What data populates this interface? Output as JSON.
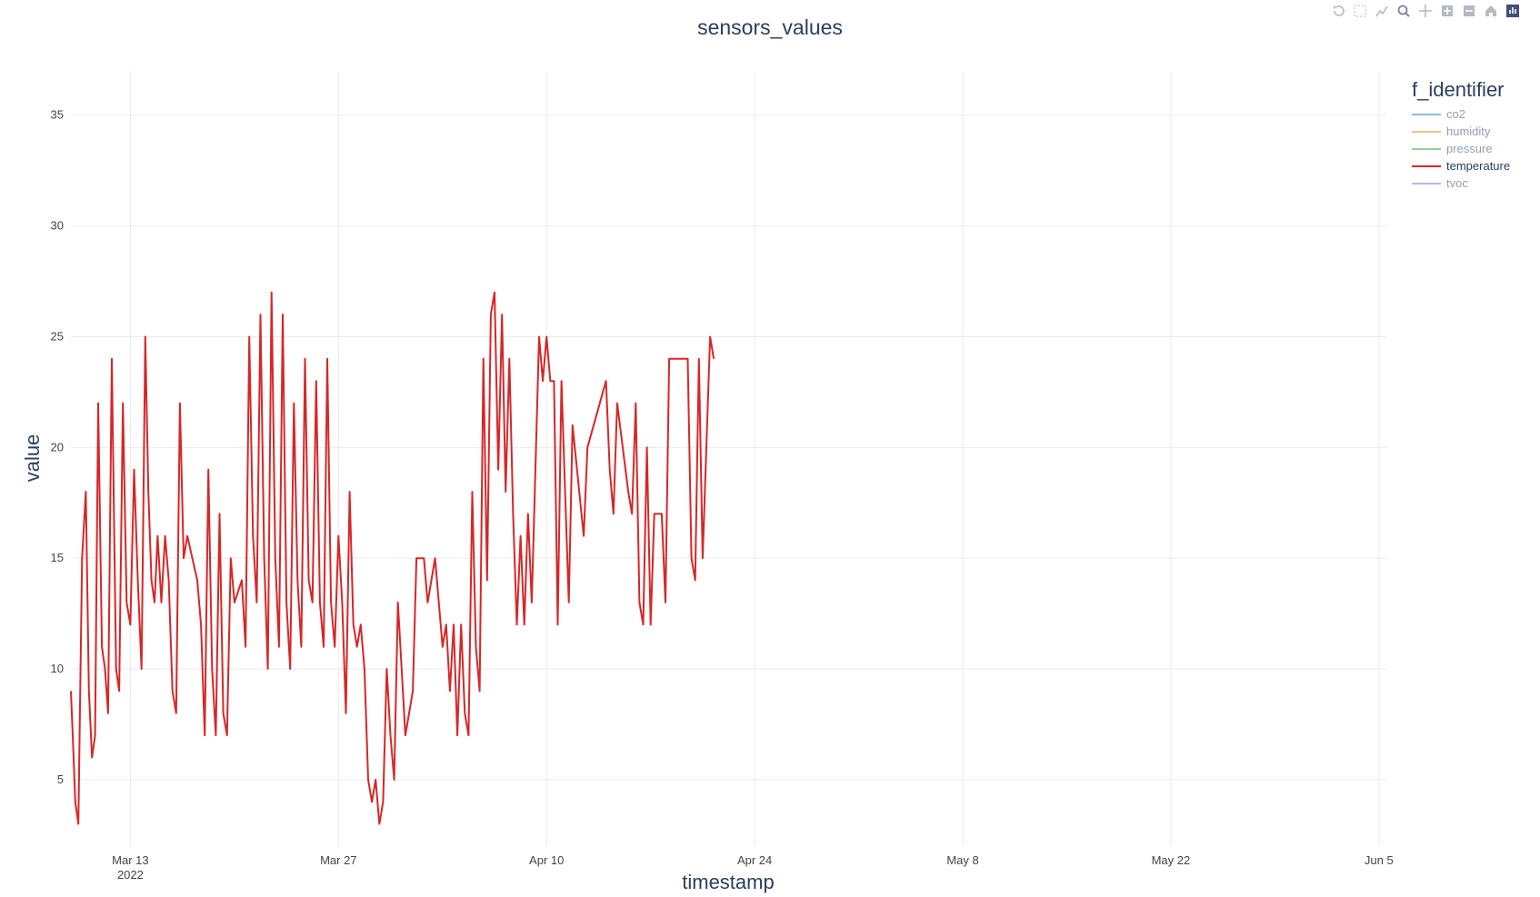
{
  "modebar": {
    "buttons": [
      "undo-icon",
      "select-icon",
      "autoscale-icon",
      "zoom-icon",
      "pan-icon",
      "zoom-in-icon",
      "zoom-out-icon",
      "home-icon",
      "plotly-logo-icon"
    ]
  },
  "chart_data": {
    "type": "line",
    "title": "sensors_values",
    "xlabel": "timestamp",
    "ylabel": "value",
    "ylim": [
      2,
      37
    ],
    "xlim": [
      "2022-03-09",
      "2022-06-05T12:00"
    ],
    "x_ticks": [
      {
        "date": "2022-03-13",
        "label": "Mar 13",
        "sublabel": "2022"
      },
      {
        "date": "2022-03-27",
        "label": "Mar 27"
      },
      {
        "date": "2022-04-10",
        "label": "Apr 10"
      },
      {
        "date": "2022-04-24",
        "label": "Apr 24"
      },
      {
        "date": "2022-05-08",
        "label": "May 8"
      },
      {
        "date": "2022-05-22",
        "label": "May 22"
      },
      {
        "date": "2022-06-05",
        "label": "Jun 5"
      }
    ],
    "y_ticks": [
      5,
      10,
      15,
      20,
      25,
      30,
      35
    ],
    "grid": true,
    "legend": {
      "title": "f_identifier",
      "placement": "top-right",
      "entries": [
        {
          "name": "co2",
          "color": "#1f77b4",
          "visible": false
        },
        {
          "name": "humidity",
          "color": "#ff7f0e",
          "visible": false
        },
        {
          "name": "pressure",
          "color": "#2ca02c",
          "visible": false
        },
        {
          "name": "temperature",
          "color": "#d62728",
          "visible": true
        },
        {
          "name": "tvoc",
          "color": "#9467bd",
          "visible": false
        }
      ]
    },
    "series": [
      {
        "name": "temperature",
        "color": "#d62728",
        "points": [
          [
            "2022-03-09T00:00",
            9
          ],
          [
            "2022-03-09T03:00",
            7
          ],
          [
            "2022-03-09T07:00",
            4
          ],
          [
            "2022-03-09T12:00",
            3
          ],
          [
            "2022-03-09T18:00",
            15
          ],
          [
            "2022-03-10T00:00",
            18
          ],
          [
            "2022-03-10T05:00",
            9
          ],
          [
            "2022-03-10T10:00",
            6
          ],
          [
            "2022-03-10T15:00",
            7
          ],
          [
            "2022-03-10T20:00",
            22
          ],
          [
            "2022-03-11T02:00",
            11
          ],
          [
            "2022-03-11T07:00",
            10
          ],
          [
            "2022-03-11T12:00",
            8
          ],
          [
            "2022-03-11T18:00",
            24
          ],
          [
            "2022-03-12T01:00",
            10
          ],
          [
            "2022-03-12T06:00",
            9
          ],
          [
            "2022-03-12T12:00",
            22
          ],
          [
            "2022-03-12T18:00",
            13
          ],
          [
            "2022-03-13T00:00",
            12
          ],
          [
            "2022-03-13T06:00",
            19
          ],
          [
            "2022-03-13T12:00",
            14
          ],
          [
            "2022-03-13T18:00",
            10
          ],
          [
            "2022-03-14T00:00",
            25
          ],
          [
            "2022-03-14T05:00",
            18
          ],
          [
            "2022-03-14T10:00",
            14
          ],
          [
            "2022-03-14T15:00",
            13
          ],
          [
            "2022-03-14T20:00",
            16
          ],
          [
            "2022-03-15T02:00",
            13
          ],
          [
            "2022-03-15T08:00",
            16
          ],
          [
            "2022-03-15T14:00",
            14
          ],
          [
            "2022-03-15T20:00",
            9
          ],
          [
            "2022-03-16T02:00",
            8
          ],
          [
            "2022-03-16T08:00",
            22
          ],
          [
            "2022-03-16T14:00",
            15
          ],
          [
            "2022-03-16T20:00",
            16
          ],
          [
            "2022-03-17T12:00",
            14
          ],
          [
            "2022-03-17T18:00",
            12
          ],
          [
            "2022-03-18T00:00",
            7
          ],
          [
            "2022-03-18T06:00",
            19
          ],
          [
            "2022-03-18T12:00",
            10
          ],
          [
            "2022-03-18T18:00",
            7
          ],
          [
            "2022-03-19T00:00",
            17
          ],
          [
            "2022-03-19T06:00",
            8
          ],
          [
            "2022-03-19T12:00",
            7
          ],
          [
            "2022-03-19T18:00",
            15
          ],
          [
            "2022-03-20T00:00",
            13
          ],
          [
            "2022-03-20T12:00",
            14
          ],
          [
            "2022-03-20T18:00",
            11
          ],
          [
            "2022-03-21T00:00",
            25
          ],
          [
            "2022-03-21T06:00",
            16
          ],
          [
            "2022-03-21T12:00",
            13
          ],
          [
            "2022-03-21T18:00",
            26
          ],
          [
            "2022-03-22T00:00",
            15
          ],
          [
            "2022-03-22T06:00",
            10
          ],
          [
            "2022-03-22T12:00",
            27
          ],
          [
            "2022-03-22T18:00",
            15
          ],
          [
            "2022-03-23T00:00",
            11
          ],
          [
            "2022-03-23T06:00",
            26
          ],
          [
            "2022-03-23T12:00",
            13
          ],
          [
            "2022-03-23T18:00",
            10
          ],
          [
            "2022-03-24T00:00",
            22
          ],
          [
            "2022-03-24T06:00",
            14
          ],
          [
            "2022-03-24T12:00",
            11
          ],
          [
            "2022-03-24T18:00",
            24
          ],
          [
            "2022-03-25T00:00",
            14
          ],
          [
            "2022-03-25T06:00",
            13
          ],
          [
            "2022-03-25T12:00",
            23
          ],
          [
            "2022-03-25T18:00",
            13
          ],
          [
            "2022-03-26T00:00",
            11
          ],
          [
            "2022-03-26T06:00",
            24
          ],
          [
            "2022-03-26T12:00",
            13
          ],
          [
            "2022-03-26T18:00",
            11
          ],
          [
            "2022-03-27T00:00",
            16
          ],
          [
            "2022-03-27T06:00",
            13
          ],
          [
            "2022-03-27T12:00",
            8
          ],
          [
            "2022-03-27T18:00",
            18
          ],
          [
            "2022-03-28T00:00",
            12
          ],
          [
            "2022-03-28T06:00",
            11
          ],
          [
            "2022-03-28T12:00",
            12
          ],
          [
            "2022-03-28T18:00",
            10
          ],
          [
            "2022-03-29T00:00",
            5
          ],
          [
            "2022-03-29T06:00",
            4
          ],
          [
            "2022-03-29T12:00",
            5
          ],
          [
            "2022-03-29T18:00",
            3
          ],
          [
            "2022-03-30T00:00",
            4
          ],
          [
            "2022-03-30T06:00",
            10
          ],
          [
            "2022-03-30T12:00",
            7
          ],
          [
            "2022-03-30T18:00",
            5
          ],
          [
            "2022-03-31T00:00",
            13
          ],
          [
            "2022-03-31T06:00",
            10
          ],
          [
            "2022-03-31T12:00",
            7
          ],
          [
            "2022-03-31T18:00",
            8
          ],
          [
            "2022-04-01T00:00",
            9
          ],
          [
            "2022-04-01T06:00",
            15
          ],
          [
            "2022-04-01T18:00",
            15
          ],
          [
            "2022-04-02T00:00",
            13
          ],
          [
            "2022-04-02T12:00",
            15
          ],
          [
            "2022-04-02T18:00",
            13
          ],
          [
            "2022-04-03T00:00",
            11
          ],
          [
            "2022-04-03T06:00",
            12
          ],
          [
            "2022-04-03T12:00",
            9
          ],
          [
            "2022-04-03T18:00",
            12
          ],
          [
            "2022-04-04T00:00",
            7
          ],
          [
            "2022-04-04T06:00",
            12
          ],
          [
            "2022-04-04T12:00",
            8
          ],
          [
            "2022-04-04T18:00",
            7
          ],
          [
            "2022-04-05T00:00",
            18
          ],
          [
            "2022-04-05T06:00",
            11
          ],
          [
            "2022-04-05T12:00",
            9
          ],
          [
            "2022-04-05T18:00",
            24
          ],
          [
            "2022-04-06T00:00",
            14
          ],
          [
            "2022-04-06T06:00",
            26
          ],
          [
            "2022-04-06T12:00",
            27
          ],
          [
            "2022-04-06T18:00",
            19
          ],
          [
            "2022-04-07T00:00",
            26
          ],
          [
            "2022-04-07T06:00",
            18
          ],
          [
            "2022-04-07T12:00",
            24
          ],
          [
            "2022-04-07T18:00",
            17
          ],
          [
            "2022-04-08T00:00",
            12
          ],
          [
            "2022-04-08T06:00",
            16
          ],
          [
            "2022-04-08T12:00",
            12
          ],
          [
            "2022-04-08T18:00",
            17
          ],
          [
            "2022-04-09T00:00",
            13
          ],
          [
            "2022-04-09T12:00",
            25
          ],
          [
            "2022-04-09T18:00",
            23
          ],
          [
            "2022-04-10T00:00",
            25
          ],
          [
            "2022-04-10T06:00",
            23
          ],
          [
            "2022-04-10T12:00",
            23
          ],
          [
            "2022-04-10T18:00",
            12
          ],
          [
            "2022-04-11T00:00",
            23
          ],
          [
            "2022-04-11T06:00",
            18
          ],
          [
            "2022-04-11T12:00",
            13
          ],
          [
            "2022-04-11T18:00",
            21
          ],
          [
            "2022-04-12T12:00",
            16
          ],
          [
            "2022-04-12T18:00",
            20
          ],
          [
            "2022-04-14T00:00",
            23
          ],
          [
            "2022-04-14T06:00",
            19
          ],
          [
            "2022-04-14T12:00",
            17
          ],
          [
            "2022-04-14T18:00",
            22
          ],
          [
            "2022-04-15T12:00",
            18
          ],
          [
            "2022-04-15T18:00",
            17
          ],
          [
            "2022-04-16T00:00",
            22
          ],
          [
            "2022-04-16T06:00",
            13
          ],
          [
            "2022-04-16T12:00",
            12
          ],
          [
            "2022-04-16T18:00",
            20
          ],
          [
            "2022-04-17T00:00",
            12
          ],
          [
            "2022-04-17T06:00",
            17
          ],
          [
            "2022-04-17T12:00",
            17
          ],
          [
            "2022-04-17T18:00",
            17
          ],
          [
            "2022-04-18T00:00",
            13
          ],
          [
            "2022-04-18T06:00",
            24
          ],
          [
            "2022-04-18T18:00",
            24
          ],
          [
            "2022-04-19T00:00",
            24
          ],
          [
            "2022-04-19T12:00",
            24
          ],
          [
            "2022-04-19T18:00",
            15
          ],
          [
            "2022-04-20T00:00",
            14
          ],
          [
            "2022-04-20T06:00",
            24
          ],
          [
            "2022-04-20T12:00",
            15
          ],
          [
            "2022-04-21T00:00",
            25
          ],
          [
            "2022-04-21T06:00",
            24
          ]
        ]
      }
    ]
  }
}
